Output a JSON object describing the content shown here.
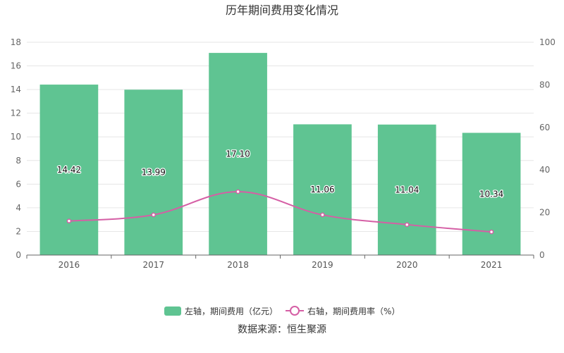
{
  "chart_data": {
    "type": "bar",
    "title": "历年期间费用变化情况",
    "categories": [
      "2016",
      "2017",
      "2018",
      "2019",
      "2020",
      "2021"
    ],
    "series": [
      {
        "name": "左轴，期间费用（亿元）",
        "type": "bar",
        "axis": "left",
        "color": "#5fc492",
        "values": [
          14.42,
          13.99,
          17.1,
          11.06,
          11.04,
          10.34
        ]
      },
      {
        "name": "右轴，期间费用率（%）",
        "type": "line",
        "axis": "right",
        "color": "#d55fa5",
        "values": [
          16.0,
          18.9,
          29.8,
          18.9,
          14.3,
          10.9
        ]
      }
    ],
    "ylim_left": [
      0,
      18
    ],
    "yticks_left": [
      "0",
      "2",
      "4",
      "6",
      "8",
      "10",
      "12",
      "14",
      "16",
      "18"
    ],
    "ylim_right": [
      0,
      100
    ],
    "yticks_right": [
      "0",
      "20",
      "40",
      "60",
      "80",
      "100"
    ],
    "grid": true,
    "legend_position": "bottom-center"
  },
  "source_text": "数据来源：恒生聚源"
}
